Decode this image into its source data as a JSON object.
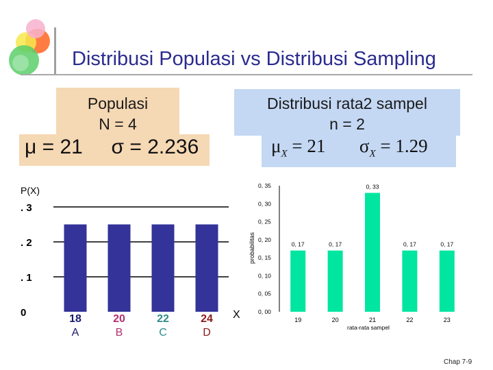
{
  "slide": {
    "title": "Distribusi Populasi vs Distribusi Sampling",
    "footer": "Chap 7-9"
  },
  "population": {
    "heading_line1": "Populasi",
    "heading_line2": "N = 4",
    "formula": "μ = 21     σ = 2.236"
  },
  "sampling": {
    "heading_line1": "Distribusi rata2 sampel",
    "heading_line2": "n = 2",
    "formula_mu": "μ",
    "formula_mu_eq": "= 21",
    "formula_sigma": "σ",
    "formula_sigma_eq": "= 1.29",
    "subscript": "X"
  },
  "colors": {
    "population_bar": "#333399",
    "sampling_bar": "#00e6a0",
    "population_box": "#f5d8b4",
    "sampling_box": "#c4d8f4",
    "title": "#2b2b8f"
  },
  "chart_data": [
    {
      "type": "bar",
      "ylabel": "P(X)",
      "xlabel": "X",
      "categories": [
        "18",
        "20",
        "22",
        "24"
      ],
      "category_letters": [
        "A",
        "B",
        "C",
        "D"
      ],
      "values": [
        0.25,
        0.25,
        0.25,
        0.25
      ],
      "ylim": [
        0,
        0.3
      ],
      "yticks": [
        0,
        0.1,
        0.2,
        0.3
      ],
      "ytick_labels": [
        "0",
        ". 1",
        ". 2",
        ". 3"
      ],
      "grid": true
    },
    {
      "type": "bar",
      "ylabel": "probabilitas",
      "xlabel": "rata-rata sampel",
      "categories": [
        "19",
        "20",
        "21",
        "22",
        "23"
      ],
      "values": [
        0.17,
        0.17,
        0.33,
        0.17,
        0.17
      ],
      "data_labels": [
        "0, 17",
        "0, 17",
        "0, 33",
        "0, 17",
        "0, 17"
      ],
      "ylim": [
        0,
        0.35
      ],
      "yticks": [
        0,
        0.05,
        0.1,
        0.15,
        0.2,
        0.25,
        0.3,
        0.35
      ],
      "ytick_labels": [
        "0, 00",
        "0, 05",
        "0, 10",
        "0, 15",
        "0, 20",
        "0, 25",
        "0, 30",
        "0, 35"
      ],
      "grid": false
    }
  ]
}
